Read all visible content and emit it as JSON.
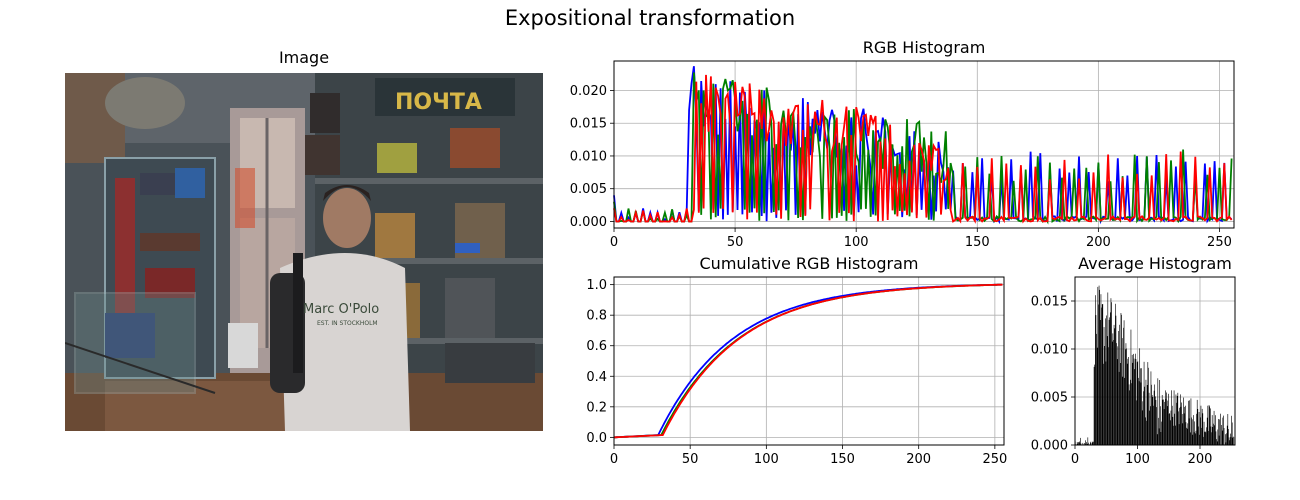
{
  "figure": {
    "title": "Expositional transformation"
  },
  "image_panel": {
    "title": "Image",
    "sign_text": "ПОЧТА",
    "sweater_text": "Marc O'Polo",
    "sweater_subtext": "EST. IN STOCKHOLM"
  },
  "chart_data": [
    {
      "id": "rgb",
      "type": "line",
      "title": "RGB Histogram",
      "xlabel": "",
      "ylabel": "",
      "xlim": [
        0,
        256
      ],
      "ylim": [
        -0.001,
        0.0245
      ],
      "xticks": [
        "0",
        "50",
        "100",
        "150",
        "200",
        "250"
      ],
      "xtick_values": [
        0,
        50,
        100,
        150,
        200,
        250
      ],
      "yticks": [
        "0.000",
        "0.005",
        "0.010",
        "0.015",
        "0.020"
      ],
      "ytick_values": [
        0,
        0.005,
        0.01,
        0.015,
        0.02
      ],
      "grid": true,
      "series_colors": [
        "#0000ff",
        "#008000",
        "#ff0000"
      ],
      "description_note": ""
    },
    {
      "id": "cum",
      "type": "line",
      "title": "Cumulative RGB Histogram",
      "xlabel": "",
      "ylabel": "",
      "xlim": [
        0,
        256
      ],
      "ylim": [
        -0.05,
        1.05
      ],
      "xticks": [
        "0",
        "50",
        "100",
        "150",
        "200",
        "250"
      ],
      "xtick_values": [
        0,
        50,
        100,
        150,
        200,
        250
      ],
      "yticks": [
        "0.0",
        "0.2",
        "0.4",
        "0.6",
        "0.8",
        "1.0"
      ],
      "ytick_values": [
        0,
        0.2,
        0.4,
        0.6,
        0.8,
        1.0
      ],
      "grid": true,
      "series_colors": [
        "#0000ff",
        "#008000",
        "#ff0000"
      ],
      "start_x": [
        29,
        31,
        32
      ],
      "curve_k": [
        0.0205,
        0.0198,
        0.02
      ]
    },
    {
      "id": "avg",
      "type": "bar",
      "title": "Average Histogram",
      "xlabel": "",
      "ylabel": "",
      "xlim": [
        0,
        256
      ],
      "ylim": [
        0,
        0.0175
      ],
      "xticks": [
        "0",
        "100",
        "200"
      ],
      "xtick_values": [
        0,
        100,
        200
      ],
      "yticks": [
        "0.000",
        "0.005",
        "0.010",
        "0.015"
      ],
      "ytick_values": [
        0,
        0.005,
        0.01,
        0.015
      ],
      "grid": true,
      "bar_color": "#000000"
    }
  ]
}
